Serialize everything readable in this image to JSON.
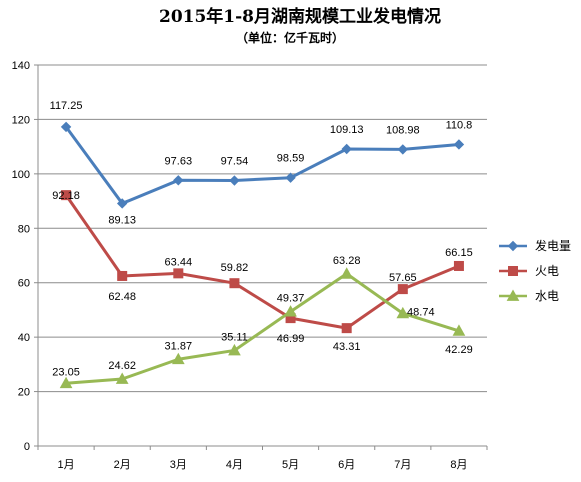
{
  "chart_data": {
    "type": "line",
    "title": "2015年1-8月湖南规模工业发电情况",
    "subtitle": "（单位：亿千瓦时）",
    "categories": [
      "1月",
      "2月",
      "3月",
      "4月",
      "5月",
      "6月",
      "7月",
      "8月"
    ],
    "ylim": [
      0,
      140
    ],
    "yticks": [
      "0",
      "20",
      "40",
      "60",
      "80",
      "100",
      "120",
      "140"
    ],
    "grid": true,
    "legend": "right",
    "series": [
      {
        "name": "发电量",
        "color": "#4a7ebb",
        "marker": "diamond",
        "values": [
          117.25,
          89.13,
          97.63,
          97.54,
          98.59,
          109.13,
          108.98,
          110.8
        ],
        "labels": [
          "117.25",
          "89.13",
          "97.63",
          "97.54",
          "98.59",
          "109.13",
          "108.98",
          "110.8"
        ]
      },
      {
        "name": "火电",
        "color": "#be4b48",
        "marker": "square",
        "values": [
          92.18,
          62.48,
          63.44,
          59.82,
          46.99,
          43.31,
          57.65,
          66.15
        ],
        "labels": [
          "92.18",
          "62.48",
          "63.44",
          "59.82",
          "46.99",
          "43.31",
          "57.65",
          "66.15"
        ]
      },
      {
        "name": "水电",
        "color": "#98b954",
        "marker": "triangle",
        "values": [
          23.05,
          24.62,
          31.87,
          35.11,
          49.37,
          63.28,
          48.74,
          42.29
        ],
        "labels": [
          "23.05",
          "24.62",
          "31.87",
          "35.11",
          "49.37",
          "63.28",
          "48.74",
          "42.29"
        ]
      }
    ]
  }
}
